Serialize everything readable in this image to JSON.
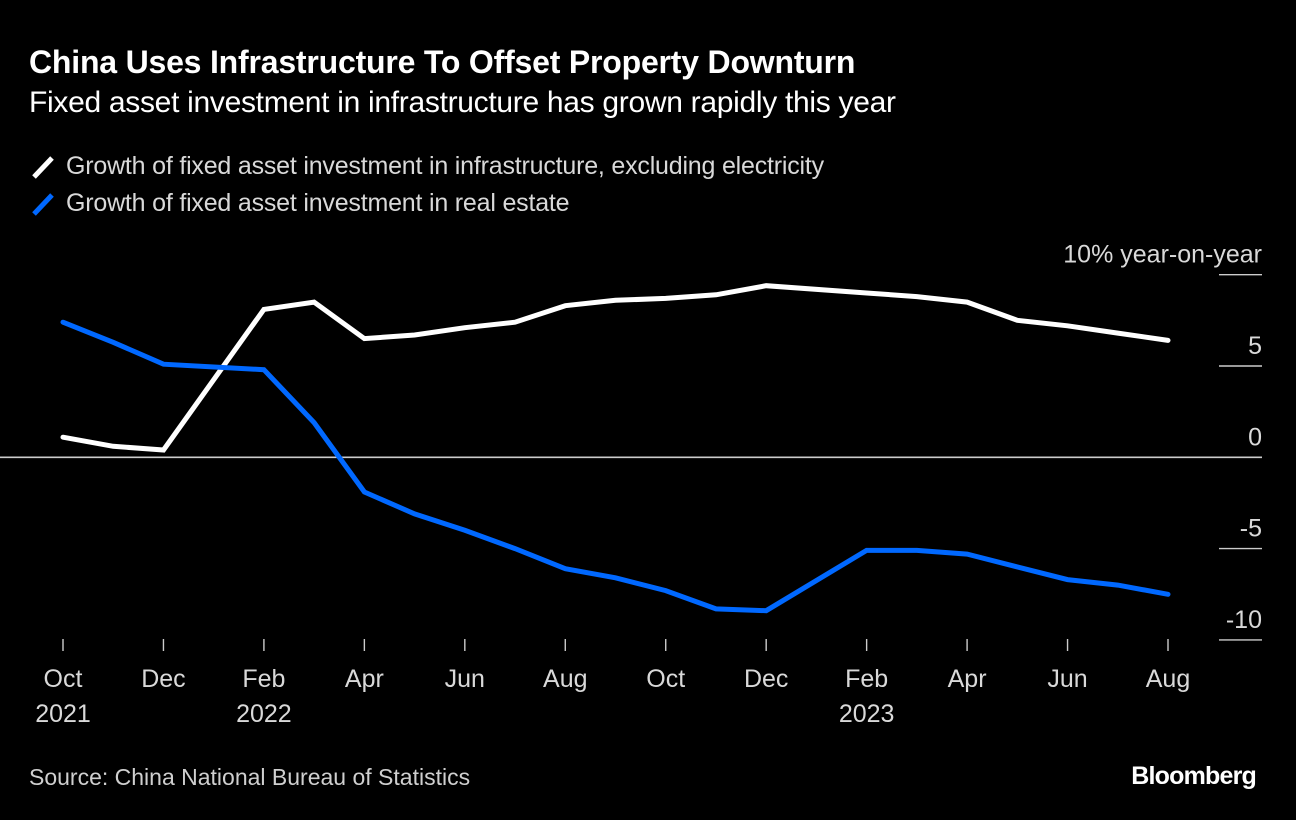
{
  "header": {
    "title": "China Uses Infrastructure To Offset Property Downturn",
    "subtitle": "Fixed asset investment in infrastructure has grown rapidly this year"
  },
  "legend": [
    {
      "label": "Growth of fixed asset investment in infrastructure, excluding electricity",
      "color": "#ffffff"
    },
    {
      "label": "Growth of fixed asset investment in real estate",
      "color": "#0068ff"
    }
  ],
  "footer": {
    "source": "Source: China National Bureau of Statistics",
    "brand": "Bloomberg"
  },
  "chart_data": {
    "type": "line",
    "title": "China Uses Infrastructure To Offset Property Downturn",
    "subtitle": "Fixed asset investment in infrastructure has grown rapidly this year",
    "xlabel": "",
    "ylabel": "% year-on-year",
    "y_unit_label": "10% year-on-year",
    "ylim": [
      -10,
      10
    ],
    "yticks": [
      {
        "value": 10,
        "label": "10% year-on-year"
      },
      {
        "value": 5,
        "label": "5"
      },
      {
        "value": 0,
        "label": "0"
      },
      {
        "value": -5,
        "label": "-5"
      },
      {
        "value": -10,
        "label": "-10"
      }
    ],
    "x_range_months": [
      0,
      22
    ],
    "xticks": [
      {
        "month_index": 0,
        "label": "Oct",
        "year": "2021"
      },
      {
        "month_index": 2,
        "label": "Dec",
        "year": ""
      },
      {
        "month_index": 4,
        "label": "Feb",
        "year": "2022"
      },
      {
        "month_index": 6,
        "label": "Apr",
        "year": ""
      },
      {
        "month_index": 8,
        "label": "Jun",
        "year": ""
      },
      {
        "month_index": 10,
        "label": "Aug",
        "year": ""
      },
      {
        "month_index": 12,
        "label": "Oct",
        "year": ""
      },
      {
        "month_index": 14,
        "label": "Dec",
        "year": ""
      },
      {
        "month_index": 16,
        "label": "Feb",
        "year": "2023"
      },
      {
        "month_index": 18,
        "label": "Apr",
        "year": ""
      },
      {
        "month_index": 20,
        "label": "Jun",
        "year": ""
      },
      {
        "month_index": 22,
        "label": "Aug",
        "year": ""
      }
    ],
    "x": [
      "2021-10",
      "2021-11",
      "2021-12",
      "2022-02",
      "2022-03",
      "2022-04",
      "2022-05",
      "2022-06",
      "2022-07",
      "2022-08",
      "2022-09",
      "2022-10",
      "2022-11",
      "2022-12",
      "2023-02",
      "2023-03",
      "2023-04",
      "2023-05",
      "2023-06",
      "2023-07",
      "2023-08"
    ],
    "x_month_index": [
      0,
      1,
      2,
      4,
      5,
      6,
      7,
      8,
      9,
      10,
      11,
      12,
      13,
      14,
      16,
      17,
      18,
      19,
      20,
      21,
      22
    ],
    "series": [
      {
        "name": "Growth of fixed asset investment in infrastructure, excluding electricity",
        "color": "#ffffff",
        "values": [
          1.1,
          0.6,
          0.4,
          8.1,
          8.5,
          6.5,
          6.7,
          7.1,
          7.4,
          8.3,
          8.6,
          8.7,
          8.9,
          9.4,
          9.0,
          8.8,
          8.5,
          7.5,
          7.2,
          6.8,
          6.4
        ]
      },
      {
        "name": "Growth of fixed asset investment in real estate",
        "color": "#0068ff",
        "values": [
          7.4,
          6.3,
          5.1,
          4.8,
          1.9,
          -1.9,
          -3.1,
          -4.0,
          -5.0,
          -6.1,
          -6.6,
          -7.3,
          -8.3,
          -8.4,
          -5.1,
          -5.1,
          -5.3,
          -6.0,
          -6.7,
          -7.0,
          -7.5
        ]
      }
    ],
    "grid": true,
    "legend_position": "top-left",
    "source": "Source: China National Bureau of Statistics"
  }
}
